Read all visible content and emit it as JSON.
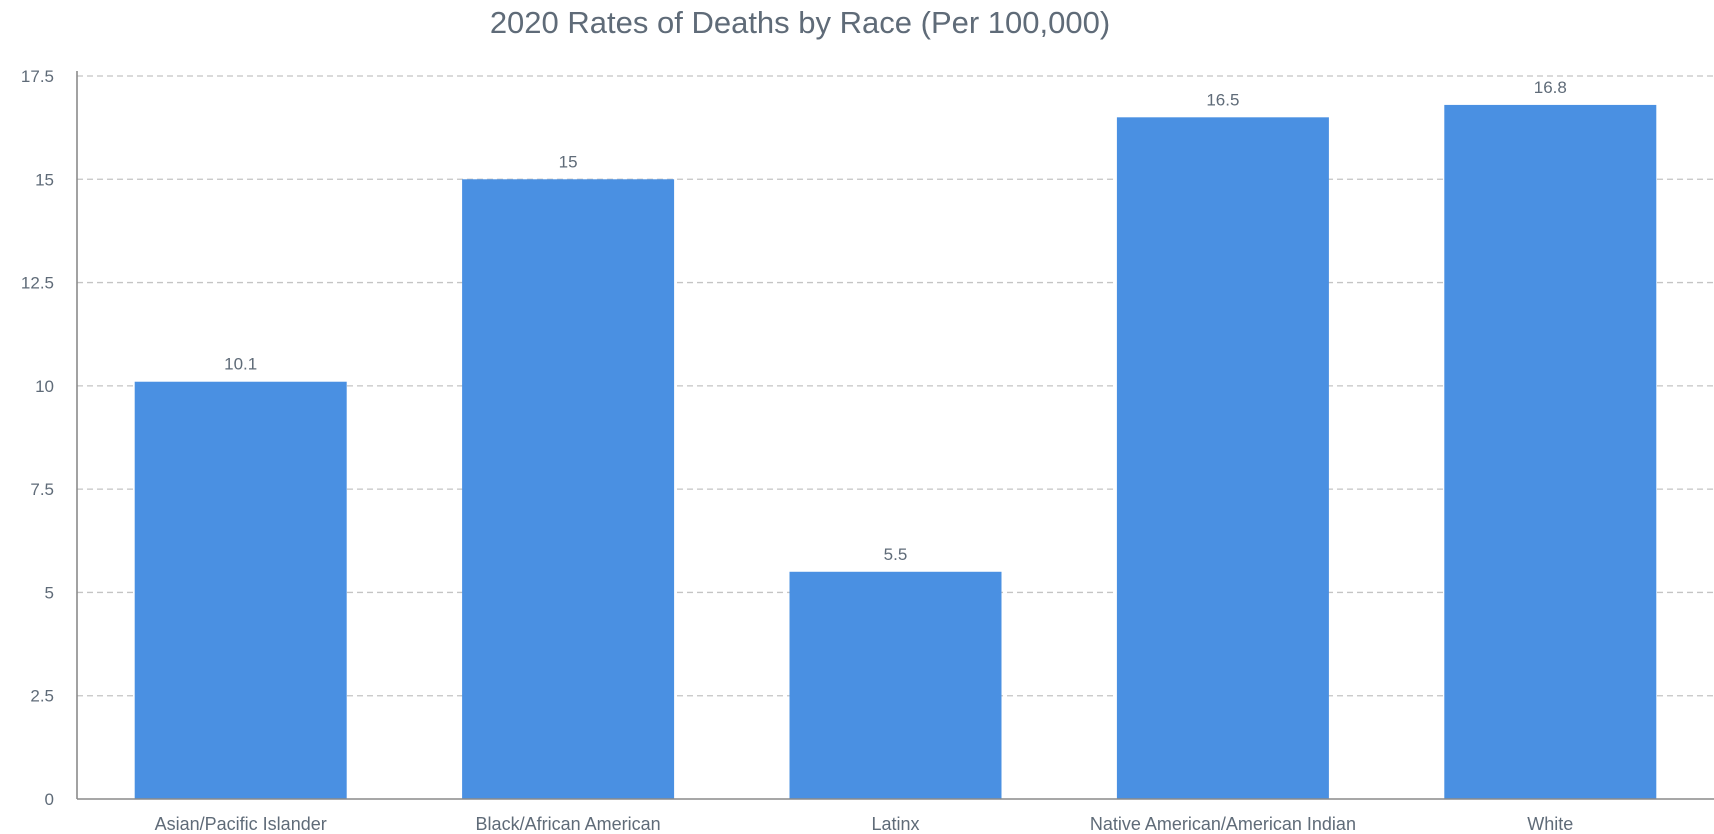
{
  "chart_data": {
    "type": "bar",
    "title": "2020 Rates of Deaths by Race (Per 100,000)",
    "xlabel": "",
    "ylabel": "",
    "categories": [
      "Asian/Pacific Islander",
      "Black/African American",
      "Latinx",
      "Native American/American Indian",
      "White"
    ],
    "values": [
      10.1,
      15,
      5.5,
      16.5,
      16.8
    ],
    "data_labels": [
      "10.1",
      "15",
      "5.5",
      "16.5",
      "16.8"
    ],
    "ylim": [
      0,
      17.5
    ],
    "yticks": [
      "0",
      "2.5",
      "5",
      "7.5",
      "10",
      "12.5",
      "15",
      "17.5"
    ],
    "grid": true,
    "legend": "none",
    "bar_color": "#4a90e2"
  }
}
